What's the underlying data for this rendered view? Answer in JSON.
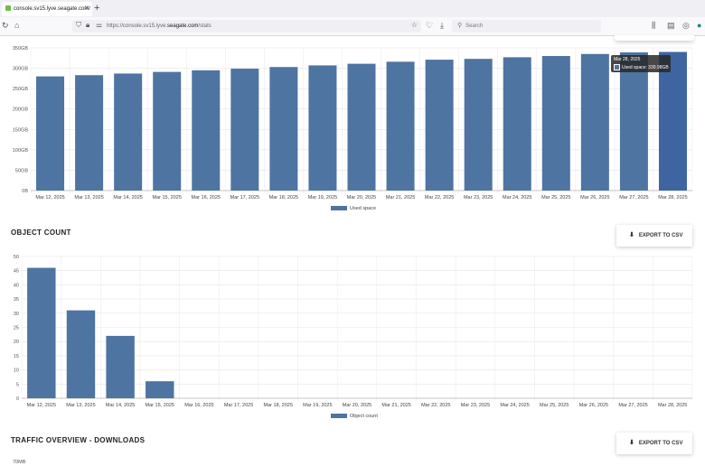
{
  "browser": {
    "tab_title": "console.sv15.lyve.seagate.com/",
    "new_tab": "+",
    "url_prefix": "https://console.sv15.lyve.",
    "url_domain": "seagate.com",
    "url_path": "/stats",
    "search_placeholder": "Search"
  },
  "used_space": {
    "legend": "Used space",
    "tooltip_title": "Mar 28, 2025",
    "tooltip_value": "Used space: 339.98GB",
    "color": "#4e74a2",
    "highlight_color": "#3e65a0"
  },
  "object_count": {
    "title": "OBJECT COUNT",
    "export_label": "EXPORT TO CSV",
    "legend": "Object count"
  },
  "traffic": {
    "title": "TRAFFIC OVERVIEW - DOWNLOADS",
    "export_label": "EXPORT TO CSV",
    "first_tick": "70MB"
  },
  "chart_data": [
    {
      "type": "bar",
      "categories": [
        "Mar 12, 2025",
        "Mar 13, 2025",
        "Mar 14, 2025",
        "Mar 15, 2025",
        "Mar 16, 2025",
        "Mar 17, 2025",
        "Mar 18, 2025",
        "Mar 19, 2025",
        "Mar 20, 2025",
        "Mar 21, 2025",
        "Mar 22, 2025",
        "Mar 23, 2025",
        "Mar 24, 2025",
        "Mar 25, 2025",
        "Mar 26, 2025",
        "Mar 27, 2025",
        "Mar 28, 2025"
      ],
      "series": [
        {
          "name": "Used space",
          "values": [
            280,
            283,
            287,
            291,
            295,
            299,
            303,
            307,
            311,
            316,
            321,
            323,
            327,
            330,
            335,
            339,
            339.98
          ]
        }
      ],
      "ylim": [
        0,
        350
      ],
      "yticks": [
        "0B",
        "50GB",
        "100GB",
        "150GB",
        "200GB",
        "250GB",
        "300GB",
        "350GB"
      ],
      "highlight_index": 16,
      "grid": true,
      "legend": "bottom"
    },
    {
      "type": "bar",
      "categories": [
        "Mar 12, 2025",
        "Mar 13, 2025",
        "Mar 14, 2025",
        "Mar 15, 2025",
        "Mar 16, 2025",
        "Mar 17, 2025",
        "Mar 18, 2025",
        "Mar 19, 2025",
        "Mar 20, 2025",
        "Mar 21, 2025",
        "Mar 22, 2025",
        "Mar 23, 2025",
        "Mar 24, 2025",
        "Mar 25, 2025",
        "Mar 26, 2025",
        "Mar 27, 2025",
        "Mar 28, 2025"
      ],
      "series": [
        {
          "name": "Object count",
          "values": [
            46,
            31,
            22,
            6,
            0,
            0,
            0,
            0,
            0,
            0,
            0,
            0,
            0,
            0,
            0,
            0,
            0
          ]
        }
      ],
      "ylim": [
        0,
        50
      ],
      "yticks": [
        "0",
        "5",
        "10",
        "15",
        "20",
        "25",
        "30",
        "35",
        "40",
        "45",
        "50"
      ],
      "grid": true,
      "legend": "bottom"
    }
  ]
}
